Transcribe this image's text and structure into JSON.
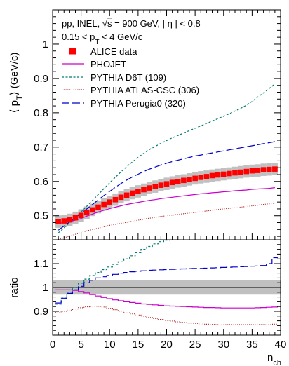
{
  "chart_data": [
    {
      "type": "line",
      "panel": "top",
      "ylabel": "⟨ p",
      "ylabel_sub": "T",
      "ylabel_unit": "⟩ (GeV/c)",
      "ylim": [
        0.43,
        1.1
      ],
      "xlim": [
        0,
        40
      ],
      "yticks": [
        {
          "v": 0.5,
          "label": "0.5"
        },
        {
          "v": 0.6,
          "label": "0.6"
        },
        {
          "v": 0.7,
          "label": "0.7"
        },
        {
          "v": 0.8,
          "label": "0.8"
        },
        {
          "v": 0.9,
          "label": "0.9"
        },
        {
          "v": 1.0,
          "label": "1"
        }
      ],
      "annotations": {
        "line1_a": "pp, INEL, ",
        "line1_sqrt": "√",
        "line1_s": "s",
        "line1_b": " = 900 GeV, | η | < 0.8",
        "line2_a": "0.15 < p",
        "line2_sub": "T",
        "line2_b": " < 4 GeV/c"
      },
      "legend_position": "top-left",
      "legend": [
        {
          "key": "data",
          "label": "ALICE data"
        },
        {
          "key": "phojet",
          "label": "PHOJET"
        },
        {
          "key": "d6t",
          "label": "PYTHIA D6T (109)"
        },
        {
          "key": "atlas",
          "label": "PYTHIA ATLAS-CSC (306)"
        },
        {
          "key": "perugia",
          "label": "PYTHIA Perugia0 (320)"
        }
      ],
      "x": [
        1,
        2,
        3,
        4,
        5,
        6,
        7,
        8,
        9,
        10,
        11,
        12,
        13,
        14,
        15,
        16,
        17,
        18,
        19,
        20,
        21,
        22,
        23,
        24,
        25,
        26,
        27,
        28,
        29,
        30,
        31,
        32,
        33,
        34,
        35,
        36,
        37,
        38,
        39
      ],
      "series": [
        {
          "key": "data",
          "name": "ALICE data",
          "values": [
            0.483,
            0.485,
            0.488,
            0.494,
            0.501,
            0.509,
            0.517,
            0.525,
            0.533,
            0.54,
            0.547,
            0.554,
            0.56,
            0.566,
            0.571,
            0.576,
            0.581,
            0.585,
            0.589,
            0.593,
            0.597,
            0.6,
            0.603,
            0.606,
            0.609,
            0.612,
            0.614,
            0.617,
            0.619,
            0.621,
            0.623,
            0.625,
            0.627,
            0.629,
            0.631,
            0.632,
            0.634,
            0.635,
            0.636
          ],
          "sys_err": 0.018
        },
        {
          "key": "phojet",
          "name": "PHOJET",
          "values": [
            0.478,
            0.48,
            0.483,
            0.487,
            0.492,
            0.499,
            0.505,
            0.511,
            0.516,
            0.521,
            0.525,
            0.529,
            0.533,
            0.536,
            0.539,
            0.542,
            0.545,
            0.547,
            0.55,
            0.552,
            0.554,
            0.556,
            0.558,
            0.56,
            0.562,
            0.564,
            0.565,
            0.567,
            0.568,
            0.57,
            0.571,
            0.573,
            0.574,
            0.575,
            0.577,
            0.578,
            0.579,
            0.58,
            0.582
          ]
        },
        {
          "key": "d6t",
          "name": "PYTHIA D6T (109)",
          "values": [
            0.45,
            0.465,
            0.48,
            0.495,
            0.511,
            0.528,
            0.545,
            0.562,
            0.579,
            0.596,
            0.612,
            0.628,
            0.643,
            0.657,
            0.67,
            0.682,
            0.693,
            0.702,
            0.711,
            0.719,
            0.727,
            0.734,
            0.741,
            0.748,
            0.755,
            0.762,
            0.769,
            0.776,
            0.783,
            0.79,
            0.797,
            0.805,
            0.813,
            0.822,
            0.833,
            0.846,
            0.858,
            0.871,
            0.884
          ]
        },
        {
          "key": "atlas",
          "name": "PYTHIA ATLAS-CSC (306)",
          "values": [
            0.431,
            0.436,
            0.441,
            0.446,
            0.451,
            0.456,
            0.46,
            0.464,
            0.468,
            0.472,
            0.475,
            0.478,
            0.481,
            0.484,
            0.487,
            0.49,
            0.493,
            0.495,
            0.498,
            0.5,
            0.502,
            0.504,
            0.506,
            0.508,
            0.51,
            0.512,
            0.514,
            0.516,
            0.518,
            0.52,
            0.522,
            0.524,
            0.525,
            0.527,
            0.529,
            0.531,
            0.533,
            0.535,
            0.537
          ]
        },
        {
          "key": "perugia",
          "name": "PYTHIA Perugia0 (320)",
          "values": [
            0.458,
            0.47,
            0.482,
            0.494,
            0.507,
            0.52,
            0.533,
            0.546,
            0.559,
            0.571,
            0.583,
            0.594,
            0.604,
            0.613,
            0.621,
            0.629,
            0.636,
            0.642,
            0.648,
            0.653,
            0.658,
            0.662,
            0.666,
            0.67,
            0.674,
            0.677,
            0.68,
            0.683,
            0.686,
            0.689,
            0.692,
            0.695,
            0.698,
            0.701,
            0.704,
            0.707,
            0.71,
            0.713,
            0.716
          ]
        }
      ]
    },
    {
      "type": "line",
      "panel": "bottom",
      "ylabel": "ratio",
      "xlabel": "n",
      "xlabel_sub": "ch",
      "ylim": [
        0.8,
        1.2
      ],
      "xlim": [
        0,
        40
      ],
      "yticks": [
        {
          "v": 0.9,
          "label": "0.9"
        },
        {
          "v": 1.0,
          "label": "1"
        },
        {
          "v": 1.1,
          "label": "1.1"
        }
      ],
      "xticks": [
        {
          "v": 0,
          "label": "0"
        },
        {
          "v": 5,
          "label": "5"
        },
        {
          "v": 10,
          "label": "10"
        },
        {
          "v": 15,
          "label": "15"
        },
        {
          "v": 20,
          "label": "20"
        },
        {
          "v": 25,
          "label": "25"
        },
        {
          "v": 30,
          "label": "30"
        },
        {
          "v": 35,
          "label": "35"
        },
        {
          "v": 40,
          "label": "40"
        }
      ],
      "band": {
        "low": 0.97,
        "high": 1.03
      },
      "x": [
        1,
        2,
        3,
        4,
        5,
        6,
        7,
        8,
        9,
        10,
        11,
        12,
        13,
        14,
        15,
        16,
        17,
        18,
        19,
        20,
        21,
        22,
        23,
        24,
        25,
        26,
        27,
        28,
        29,
        30,
        31,
        32,
        33,
        34,
        35,
        36,
        37,
        38,
        39
      ],
      "series": [
        {
          "key": "phojet",
          "name": "PHOJET",
          "values": [
            0.99,
            0.99,
            0.99,
            0.988,
            0.983,
            0.977,
            0.97,
            0.964,
            0.958,
            0.953,
            0.948,
            0.944,
            0.94,
            0.937,
            0.934,
            0.931,
            0.929,
            0.927,
            0.925,
            0.923,
            0.922,
            0.921,
            0.92,
            0.919,
            0.918,
            0.917,
            0.916,
            0.916,
            0.915,
            0.914,
            0.914,
            0.914,
            0.914,
            0.914,
            0.914,
            0.915,
            0.916,
            0.917,
            0.918
          ]
        },
        {
          "key": "d6t",
          "name": "PYTHIA D6T (109)",
          "values": [
            0.93,
            0.955,
            0.98,
            1.0,
            1.018,
            1.035,
            1.05,
            1.063,
            1.075,
            1.086,
            1.097,
            1.108,
            1.12,
            1.133,
            1.146,
            1.16,
            1.172,
            1.183,
            1.192,
            1.198,
            1.203,
            1.205,
            1.207,
            1.208,
            1.209,
            1.21,
            1.211,
            1.212,
            1.213,
            1.214,
            1.215,
            1.216,
            1.217,
            1.218,
            1.219,
            1.22,
            1.221,
            1.222,
            1.223
          ]
        },
        {
          "key": "atlas",
          "name": "PYTHIA ATLAS-CSC (306)",
          "values": [
            0.895,
            0.9,
            0.905,
            0.91,
            0.915,
            0.919,
            0.921,
            0.921,
            0.918,
            0.913,
            0.907,
            0.901,
            0.895,
            0.889,
            0.884,
            0.879,
            0.874,
            0.87,
            0.866,
            0.862,
            0.859,
            0.856,
            0.853,
            0.851,
            0.849,
            0.847,
            0.846,
            0.845,
            0.844,
            0.844,
            0.844,
            0.844,
            0.844,
            0.844,
            0.844,
            0.844,
            0.844,
            0.845,
            0.846
          ]
        },
        {
          "key": "perugia",
          "name": "PYTHIA Perugia0 (320)",
          "values": [
            0.935,
            0.955,
            0.975,
            0.99,
            1.005,
            1.02,
            1.03,
            1.04,
            1.045,
            1.05,
            1.055,
            1.06,
            1.063,
            1.066,
            1.068,
            1.07,
            1.072,
            1.073,
            1.074,
            1.075,
            1.076,
            1.077,
            1.078,
            1.079,
            1.08,
            1.08,
            1.081,
            1.082,
            1.083,
            1.084,
            1.085,
            1.086,
            1.087,
            1.088,
            1.089,
            1.09,
            1.092,
            1.1,
            1.125
          ]
        }
      ]
    }
  ],
  "styles": {
    "data": "#ff0000",
    "data_err": "#c0c0c0",
    "phojet": "#cc00cc",
    "d6t": "#007a6e",
    "atlas": "#b22222",
    "perugia": "#0000cc",
    "axis": "#000000"
  }
}
